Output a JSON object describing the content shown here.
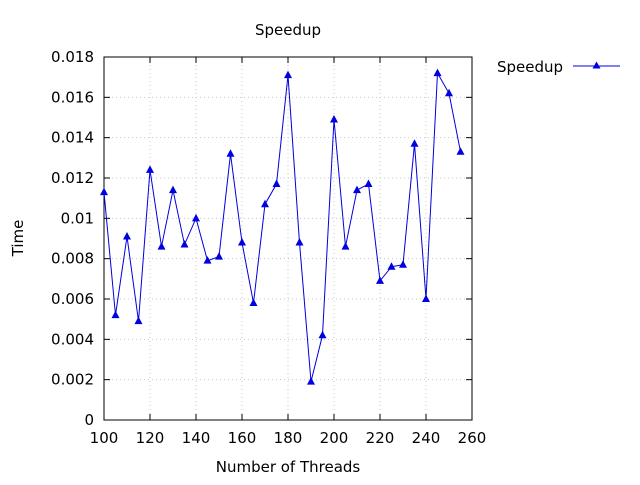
{
  "chart_data": {
    "type": "line",
    "title": "Speedup",
    "xlabel": "Number of Threads",
    "ylabel": "Time",
    "xlim": [
      100,
      260
    ],
    "ylim": [
      0,
      0.018
    ],
    "x_ticks": [
      "100",
      "120",
      "140",
      "160",
      "180",
      "200",
      "220",
      "240",
      "260"
    ],
    "y_ticks": [
      "0",
      "0.002",
      "0.004",
      "0.006",
      "0.008",
      "0.01",
      "0.012",
      "0.014",
      "0.016",
      "0.018"
    ],
    "grid": true,
    "legend_position": "top-right, outside plot",
    "series": [
      {
        "name": "Speedup",
        "color": "#0000e0",
        "marker": "triangle",
        "x": [
          100,
          105,
          110,
          115,
          120,
          125,
          130,
          135,
          140,
          145,
          150,
          155,
          160,
          165,
          170,
          175,
          180,
          185,
          190,
          195,
          200,
          205,
          210,
          215,
          220,
          225,
          230,
          235,
          240,
          245,
          250,
          255
        ],
        "values": [
          0.0113,
          0.0052,
          0.0091,
          0.0049,
          0.0124,
          0.0086,
          0.0114,
          0.0087,
          0.01,
          0.0079,
          0.0081,
          0.0132,
          0.0088,
          0.0058,
          0.0107,
          0.0117,
          0.0171,
          0.0088,
          0.0019,
          0.0042,
          0.0149,
          0.0086,
          0.0114,
          0.0117,
          0.0069,
          0.0076,
          0.0077,
          0.0137,
          0.006,
          0.0172,
          0.0162,
          0.0133
        ]
      }
    ]
  }
}
